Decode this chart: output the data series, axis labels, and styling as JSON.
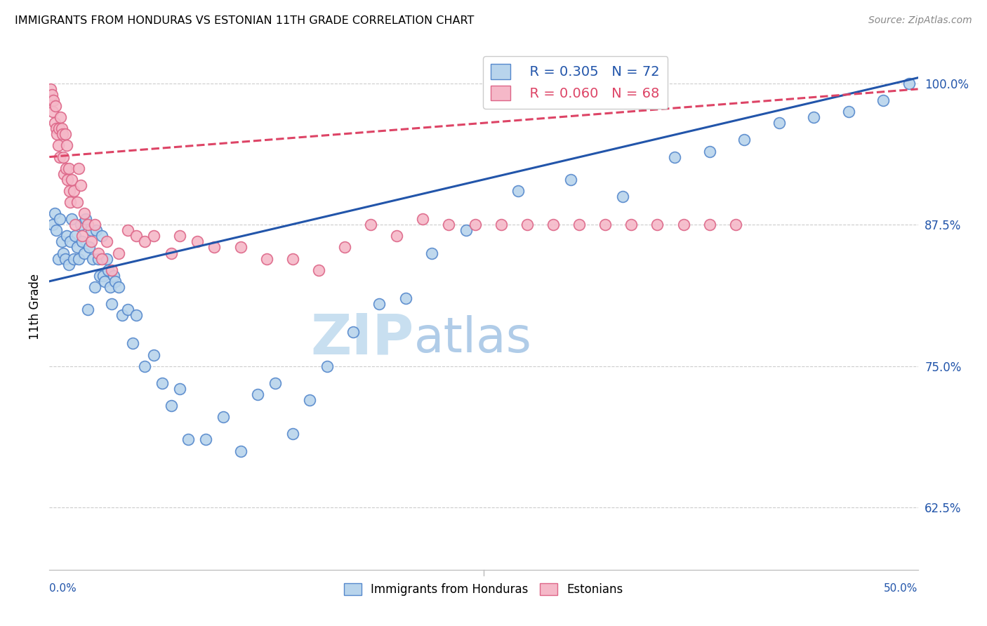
{
  "title": "IMMIGRANTS FROM HONDURAS VS ESTONIAN 11TH GRADE CORRELATION CHART",
  "source": "Source: ZipAtlas.com",
  "ylabel": "11th Grade",
  "yticks": [
    62.5,
    75.0,
    87.5,
    100.0
  ],
  "xlim": [
    0.0,
    50.0
  ],
  "ylim": [
    57.0,
    103.5
  ],
  "legend_r1": "R = 0.305",
  "legend_n1": "N = 72",
  "legend_r2": "R = 0.060",
  "legend_n2": "N = 68",
  "blue_color": "#b8d4ec",
  "pink_color": "#f5b8c8",
  "blue_edge_color": "#5588cc",
  "pink_edge_color": "#dd6688",
  "blue_line_color": "#2255aa",
  "pink_line_color": "#dd4466",
  "watermark_zip_color": "#c8dff0",
  "watermark_atlas_color": "#b0cce8",
  "blue_scatter_x": [
    0.2,
    0.3,
    0.4,
    0.5,
    0.6,
    0.7,
    0.8,
    0.9,
    1.0,
    1.1,
    1.2,
    1.3,
    1.4,
    1.5,
    1.6,
    1.7,
    1.8,
    1.9,
    2.0,
    2.1,
    2.2,
    2.3,
    2.4,
    2.5,
    2.6,
    2.7,
    2.8,
    2.9,
    3.0,
    3.1,
    3.2,
    3.3,
    3.4,
    3.5,
    3.6,
    3.7,
    3.8,
    4.0,
    4.2,
    4.5,
    4.8,
    5.0,
    5.5,
    6.0,
    6.5,
    7.0,
    7.5,
    8.0,
    9.0,
    10.0,
    11.0,
    12.0,
    13.0,
    14.0,
    15.0,
    16.0,
    17.5,
    19.0,
    20.5,
    22.0,
    24.0,
    27.0,
    30.0,
    33.0,
    36.0,
    38.0,
    40.0,
    42.0,
    44.0,
    46.0,
    48.0,
    49.5
  ],
  "blue_scatter_y": [
    87.5,
    88.5,
    87.0,
    84.5,
    88.0,
    86.0,
    85.0,
    84.5,
    86.5,
    84.0,
    86.0,
    88.0,
    84.5,
    86.5,
    85.5,
    84.5,
    87.5,
    86.0,
    85.0,
    88.0,
    80.0,
    85.5,
    87.0,
    84.5,
    82.0,
    87.0,
    84.5,
    83.0,
    86.5,
    83.0,
    82.5,
    84.5,
    83.5,
    82.0,
    80.5,
    83.0,
    82.5,
    82.0,
    79.5,
    80.0,
    77.0,
    79.5,
    75.0,
    76.0,
    73.5,
    71.5,
    73.0,
    68.5,
    68.5,
    70.5,
    67.5,
    72.5,
    73.5,
    69.0,
    72.0,
    75.0,
    78.0,
    80.5,
    81.0,
    85.0,
    87.0,
    90.5,
    91.5,
    90.0,
    93.5,
    94.0,
    95.0,
    96.5,
    97.0,
    97.5,
    98.5,
    100.0
  ],
  "pink_scatter_x": [
    0.05,
    0.1,
    0.15,
    0.2,
    0.25,
    0.3,
    0.35,
    0.4,
    0.45,
    0.5,
    0.55,
    0.6,
    0.65,
    0.7,
    0.75,
    0.8,
    0.85,
    0.9,
    0.95,
    1.0,
    1.05,
    1.1,
    1.15,
    1.2,
    1.3,
    1.4,
    1.5,
    1.6,
    1.7,
    1.8,
    1.9,
    2.0,
    2.2,
    2.4,
    2.6,
    2.8,
    3.0,
    3.3,
    3.6,
    4.0,
    4.5,
    5.0,
    5.5,
    6.0,
    7.0,
    7.5,
    8.5,
    9.5,
    11.0,
    12.5,
    14.0,
    15.5,
    17.0,
    18.5,
    20.0,
    21.5,
    23.0,
    24.5,
    26.0,
    27.5,
    29.0,
    30.5,
    32.0,
    33.5,
    35.0,
    36.5,
    38.0,
    39.5
  ],
  "pink_scatter_y": [
    99.5,
    98.5,
    99.0,
    97.5,
    98.5,
    96.5,
    98.0,
    96.0,
    95.5,
    94.5,
    96.0,
    93.5,
    97.0,
    96.0,
    95.5,
    93.5,
    92.0,
    95.5,
    92.5,
    94.5,
    91.5,
    92.5,
    90.5,
    89.5,
    91.5,
    90.5,
    87.5,
    89.5,
    92.5,
    91.0,
    86.5,
    88.5,
    87.5,
    86.0,
    87.5,
    85.0,
    84.5,
    86.0,
    83.5,
    85.0,
    87.0,
    86.5,
    86.0,
    86.5,
    85.0,
    86.5,
    86.0,
    85.5,
    85.5,
    84.5,
    84.5,
    83.5,
    85.5,
    87.5,
    86.5,
    88.0,
    87.5,
    87.5,
    87.5,
    87.5,
    87.5,
    87.5,
    87.5,
    87.5,
    87.5,
    87.5,
    87.5,
    87.5
  ],
  "blue_line_x0": 0.0,
  "blue_line_x1": 50.0,
  "blue_line_y0": 82.5,
  "blue_line_y1": 100.5,
  "pink_line_x0": 0.0,
  "pink_line_x1": 50.0,
  "pink_line_y0": 93.5,
  "pink_line_y1": 99.5
}
